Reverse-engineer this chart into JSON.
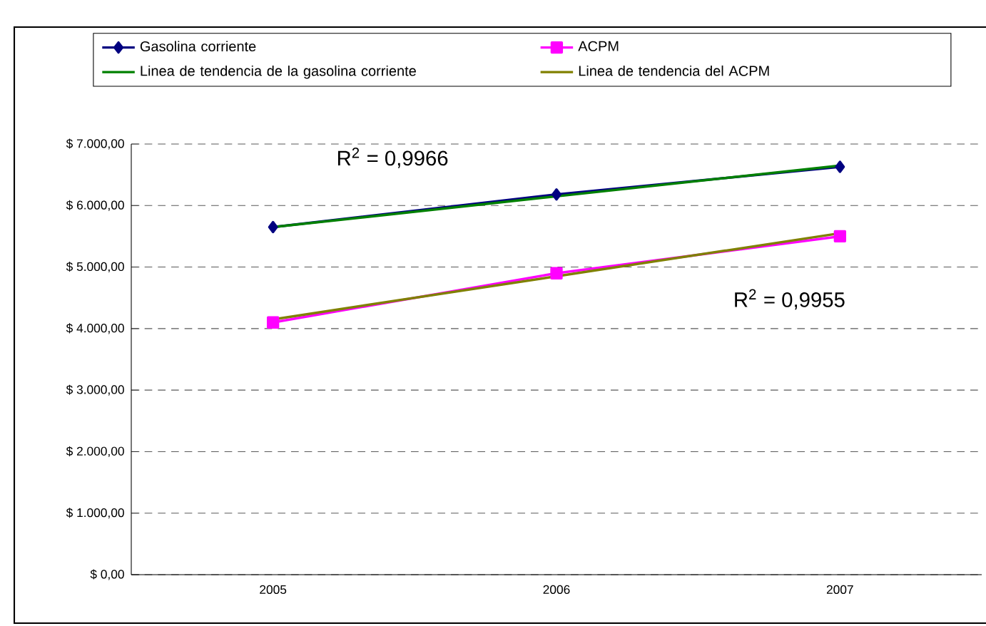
{
  "chart_data": {
    "type": "line",
    "categories": [
      "2005",
      "2006",
      "2007"
    ],
    "series": [
      {
        "name": "Gasolina corriente",
        "color": "#000080",
        "values": [
          5650,
          6180,
          6630
        ],
        "marker": "diamond"
      },
      {
        "name": "ACPM",
        "color": "#ff00ff",
        "values": [
          4100,
          4900,
          5500
        ],
        "marker": "square"
      },
      {
        "name": "Linea de tendencia de la gasolina corriente",
        "color": "#008000",
        "values": [
          5650,
          6150,
          6650
        ],
        "marker": "none"
      },
      {
        "name": "Linea de tendencia del ACPM",
        "color": "#808000",
        "values": [
          4150,
          4850,
          5550
        ],
        "marker": "none"
      }
    ],
    "ylim": [
      0,
      7000
    ],
    "yticks": [
      {
        "value": 0,
        "label": "$ 0,00"
      },
      {
        "value": 1000,
        "label": "$ 1.000,00"
      },
      {
        "value": 2000,
        "label": "$ 2.000,00"
      },
      {
        "value": 3000,
        "label": "$ 3.000,00"
      },
      {
        "value": 4000,
        "label": "$ 4.000,00"
      },
      {
        "value": 5000,
        "label": "$ 5.000,00"
      },
      {
        "value": 6000,
        "label": "$ 6.000,00"
      },
      {
        "value": 7000,
        "label": "$ 7.000,00"
      }
    ],
    "grid": "y",
    "legend": "top",
    "line_style": "solid",
    "annotations": [
      "R$^{2}$ = 0,9966",
      "R$^{2}$ = 0,9955"
    ]
  }
}
